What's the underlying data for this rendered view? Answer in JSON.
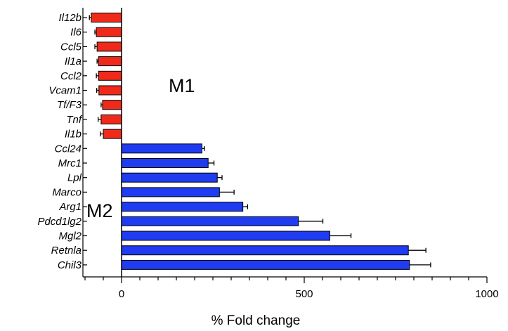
{
  "chart_data": {
    "type": "bar",
    "orientation": "horizontal",
    "xlabel": "% Fold change",
    "ylabel": "",
    "xlim": [
      -100,
      1000
    ],
    "x_ticks": [
      0,
      500,
      1000
    ],
    "grid": false,
    "categories": [
      "Il12b",
      "Il6",
      "Ccl5",
      "Il1a",
      "Ccl2",
      "Vcam1",
      "Tf/F3",
      "Tnf",
      "Il1b",
      "Ccl24",
      "Mrc1",
      "Lpl",
      "Marco",
      "Arg1",
      "Pdcd1lg2",
      "Mgl2",
      "Retnla",
      "Chil3"
    ],
    "values": [
      -83,
      -69,
      -67,
      -63,
      -63,
      -62,
      -52,
      -56,
      -50,
      220,
      237,
      262,
      268,
      332,
      484,
      570,
      785,
      788
    ],
    "errors": [
      5,
      4,
      6,
      4,
      6,
      6,
      4,
      8,
      8,
      7,
      16,
      13,
      40,
      13,
      67,
      58,
      48,
      58
    ],
    "bar_colors": [
      "#ef2a1a",
      "#ef2a1a",
      "#ef2a1a",
      "#ef2a1a",
      "#ef2a1a",
      "#ef2a1a",
      "#ef2a1a",
      "#ef2a1a",
      "#ef2a1a",
      "#1f3cf0",
      "#1f3cf0",
      "#1f3cf0",
      "#1f3cf0",
      "#1f3cf0",
      "#1f3cf0",
      "#1f3cf0",
      "#1f3cf0",
      "#1f3cf0"
    ],
    "annotations": [
      "M1",
      "M2"
    ]
  }
}
